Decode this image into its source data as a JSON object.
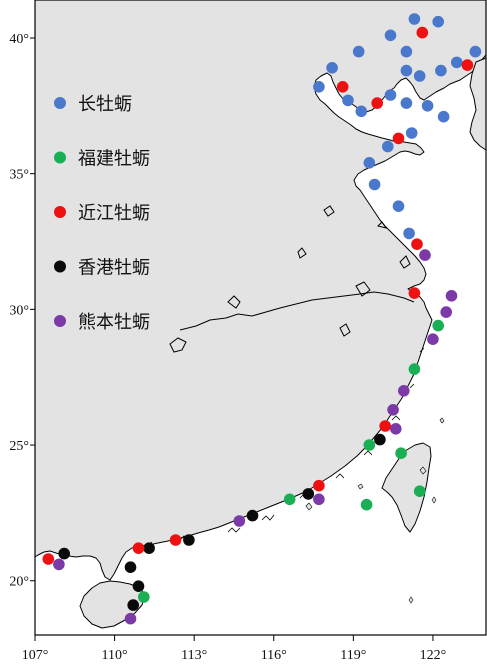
{
  "map": {
    "colors": {
      "land": "#e3e3e3",
      "sea": "#ffffff",
      "coastline": "#000000",
      "frame": "#000000"
    },
    "extent": {
      "lon": [
        107,
        124
      ],
      "lat": [
        18,
        41.4
      ]
    },
    "x_ticks": [
      {
        "value": 107,
        "label": "107°"
      },
      {
        "value": 110,
        "label": "110°"
      },
      {
        "value": 113,
        "label": "113°"
      },
      {
        "value": 116,
        "label": "116°"
      },
      {
        "value": 119,
        "label": "119°"
      },
      {
        "value": 122,
        "label": "122°"
      }
    ],
    "y_ticks": [
      {
        "value": 20,
        "label": "20°"
      },
      {
        "value": 25,
        "label": "25°"
      },
      {
        "value": 30,
        "label": "30°"
      },
      {
        "value": 35,
        "label": "35°"
      },
      {
        "value": 40,
        "label": "40°"
      }
    ]
  },
  "legend": {
    "placement": "left-upper",
    "items": [
      {
        "id": "changmuli",
        "label": "长牡蛎",
        "color": "#4a78cc"
      },
      {
        "id": "fujian",
        "label": "福建牡蛎",
        "color": "#1aae55"
      },
      {
        "id": "jinjiang",
        "label": "近江牡蛎",
        "color": "#ee1111"
      },
      {
        "id": "hongkong",
        "label": "香港牡蛎",
        "color": "#0a0a0a"
      },
      {
        "id": "kumamoto",
        "label": "熊本牡蛎",
        "color": "#7b3aa8"
      }
    ]
  },
  "sites": [
    {
      "species": "changmuli",
      "lon": 121.3,
      "lat": 40.7
    },
    {
      "species": "changmuli",
      "lon": 122.2,
      "lat": 40.6
    },
    {
      "species": "jinjiang",
      "lon": 121.6,
      "lat": 40.2
    },
    {
      "species": "changmuli",
      "lon": 120.4,
      "lat": 40.1
    },
    {
      "species": "changmuli",
      "lon": 121.0,
      "lat": 39.5
    },
    {
      "species": "changmuli",
      "lon": 119.2,
      "lat": 39.5
    },
    {
      "species": "changmuli",
      "lon": 118.2,
      "lat": 38.9
    },
    {
      "species": "changmuli",
      "lon": 121.0,
      "lat": 38.8
    },
    {
      "species": "changmuli",
      "lon": 121.5,
      "lat": 38.6
    },
    {
      "species": "changmuli",
      "lon": 122.3,
      "lat": 38.8
    },
    {
      "species": "changmuli",
      "lon": 122.9,
      "lat": 39.1
    },
    {
      "species": "jinjiang",
      "lon": 123.3,
      "lat": 39.0
    },
    {
      "species": "changmuli",
      "lon": 123.6,
      "lat": 39.5
    },
    {
      "species": "changmuli",
      "lon": 117.7,
      "lat": 38.2
    },
    {
      "species": "jinjiang",
      "lon": 118.6,
      "lat": 38.2
    },
    {
      "species": "changmuli",
      "lon": 118.8,
      "lat": 37.7
    },
    {
      "species": "changmuli",
      "lon": 119.3,
      "lat": 37.3
    },
    {
      "species": "jinjiang",
      "lon": 119.9,
      "lat": 37.6
    },
    {
      "species": "changmuli",
      "lon": 120.4,
      "lat": 37.9
    },
    {
      "species": "changmuli",
      "lon": 121.0,
      "lat": 37.6
    },
    {
      "species": "changmuli",
      "lon": 121.8,
      "lat": 37.5
    },
    {
      "species": "changmuli",
      "lon": 122.4,
      "lat": 37.1
    },
    {
      "species": "changmuli",
      "lon": 121.2,
      "lat": 36.5
    },
    {
      "species": "jinjiang",
      "lon": 120.7,
      "lat": 36.3
    },
    {
      "species": "changmuli",
      "lon": 120.3,
      "lat": 36.0
    },
    {
      "species": "changmuli",
      "lon": 119.6,
      "lat": 35.4
    },
    {
      "species": "changmuli",
      "lon": 119.8,
      "lat": 34.6
    },
    {
      "species": "changmuli",
      "lon": 120.7,
      "lat": 33.8
    },
    {
      "species": "changmuli",
      "lon": 121.1,
      "lat": 32.8
    },
    {
      "species": "jinjiang",
      "lon": 121.4,
      "lat": 32.4
    },
    {
      "species": "kumamoto",
      "lon": 121.7,
      "lat": 32.0
    },
    {
      "species": "kumamoto",
      "lon": 122.7,
      "lat": 30.5
    },
    {
      "species": "jinjiang",
      "lon": 121.3,
      "lat": 30.6
    },
    {
      "species": "kumamoto",
      "lon": 122.5,
      "lat": 29.9
    },
    {
      "species": "fujian",
      "lon": 122.2,
      "lat": 29.4
    },
    {
      "species": "kumamoto",
      "lon": 122.0,
      "lat": 28.9
    },
    {
      "species": "fujian",
      "lon": 121.3,
      "lat": 27.8
    },
    {
      "species": "kumamoto",
      "lon": 120.9,
      "lat": 27.0
    },
    {
      "species": "kumamoto",
      "lon": 120.5,
      "lat": 26.3
    },
    {
      "species": "jinjiang",
      "lon": 120.2,
      "lat": 25.7
    },
    {
      "species": "kumamoto",
      "lon": 120.6,
      "lat": 25.6
    },
    {
      "species": "hongkong",
      "lon": 120.0,
      "lat": 25.2
    },
    {
      "species": "fujian",
      "lon": 119.6,
      "lat": 25.0
    },
    {
      "species": "fujian",
      "lon": 120.8,
      "lat": 24.7
    },
    {
      "species": "fujian",
      "lon": 121.5,
      "lat": 23.3
    },
    {
      "species": "fujian",
      "lon": 119.5,
      "lat": 22.8
    },
    {
      "species": "jinjiang",
      "lon": 117.7,
      "lat": 23.5
    },
    {
      "species": "hongkong",
      "lon": 117.3,
      "lat": 23.2
    },
    {
      "species": "kumamoto",
      "lon": 117.7,
      "lat": 23.0
    },
    {
      "species": "fujian",
      "lon": 116.6,
      "lat": 23.0
    },
    {
      "species": "hongkong",
      "lon": 115.2,
      "lat": 22.4
    },
    {
      "species": "kumamoto",
      "lon": 114.7,
      "lat": 22.2
    },
    {
      "species": "hongkong",
      "lon": 112.8,
      "lat": 21.5
    },
    {
      "species": "jinjiang",
      "lon": 112.3,
      "lat": 21.5
    },
    {
      "species": "hongkong",
      "lon": 111.3,
      "lat": 21.2
    },
    {
      "species": "jinjiang",
      "lon": 110.9,
      "lat": 21.2
    },
    {
      "species": "hongkong",
      "lon": 108.1,
      "lat": 21.0
    },
    {
      "species": "jinjiang",
      "lon": 107.5,
      "lat": 20.8
    },
    {
      "species": "kumamoto",
      "lon": 107.9,
      "lat": 20.6
    },
    {
      "species": "hongkong",
      "lon": 110.6,
      "lat": 20.5
    },
    {
      "species": "hongkong",
      "lon": 110.9,
      "lat": 19.8
    },
    {
      "species": "fujian",
      "lon": 111.1,
      "lat": 19.4
    },
    {
      "species": "hongkong",
      "lon": 110.7,
      "lat": 19.1
    },
    {
      "species": "kumamoto",
      "lon": 110.6,
      "lat": 18.6
    }
  ]
}
